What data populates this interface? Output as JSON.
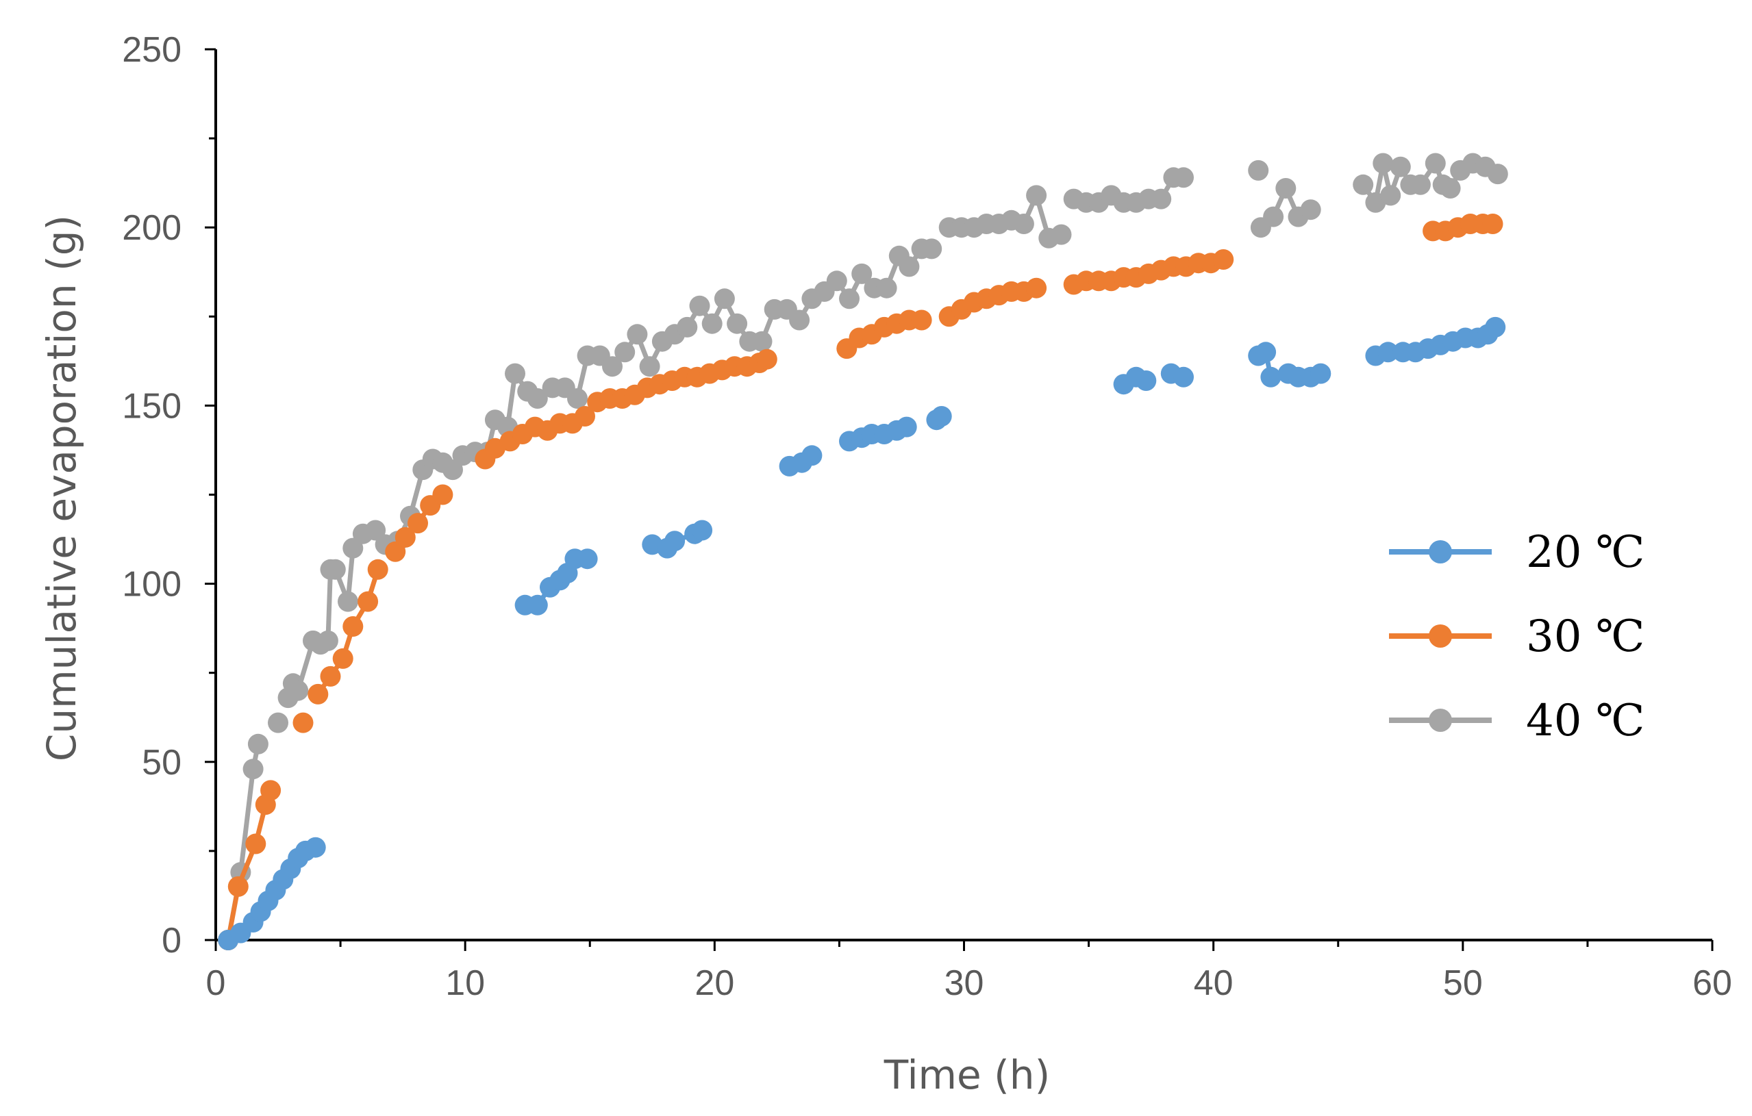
{
  "chart_data": {
    "type": "line",
    "title": "",
    "xlabel": "Time (h)",
    "ylabel": "Cumulative evaporation (g)",
    "xlim": [
      0,
      60
    ],
    "ylim": [
      0,
      250
    ],
    "xticks": [
      0,
      10,
      20,
      30,
      40,
      50,
      60
    ],
    "yticks": [
      0,
      50,
      100,
      150,
      200,
      250
    ],
    "grid": false,
    "legend_position": "right",
    "series": [
      {
        "name": "20 ℃",
        "color": "#5B9BD5",
        "segments": [
          [
            [
              0.5,
              0
            ],
            [
              1.0,
              2
            ],
            [
              1.5,
              5
            ],
            [
              1.8,
              8
            ],
            [
              2.1,
              11
            ],
            [
              2.4,
              14
            ],
            [
              2.7,
              17
            ],
            [
              3.0,
              20
            ],
            [
              3.3,
              23
            ],
            [
              3.6,
              25
            ],
            [
              4.0,
              26
            ]
          ],
          [
            [
              12.4,
              94
            ],
            [
              12.9,
              94
            ],
            [
              13.4,
              99
            ],
            [
              13.8,
              101
            ],
            [
              14.1,
              103
            ],
            [
              14.4,
              107
            ],
            [
              14.9,
              107
            ]
          ],
          [
            [
              17.5,
              111
            ],
            [
              18.1,
              110
            ],
            [
              18.4,
              112
            ],
            [
              19.2,
              114
            ],
            [
              19.5,
              115
            ]
          ],
          [
            [
              23.0,
              133
            ],
            [
              23.5,
              134
            ],
            [
              23.9,
              136
            ]
          ],
          [
            [
              25.4,
              140
            ],
            [
              25.9,
              141
            ],
            [
              26.3,
              142
            ],
            [
              26.8,
              142
            ],
            [
              27.3,
              143
            ],
            [
              27.7,
              144
            ]
          ],
          [
            [
              28.9,
              146
            ],
            [
              29.1,
              147
            ]
          ],
          [
            [
              36.4,
              156
            ],
            [
              36.9,
              158
            ],
            [
              37.3,
              157
            ]
          ],
          [
            [
              38.3,
              159
            ],
            [
              38.8,
              158
            ]
          ],
          [
            [
              41.8,
              164
            ],
            [
              42.1,
              165
            ],
            [
              42.3,
              158
            ]
          ],
          [
            [
              43.0,
              159
            ],
            [
              43.4,
              158
            ],
            [
              43.9,
              158
            ],
            [
              44.3,
              159
            ]
          ],
          [
            [
              46.5,
              164
            ],
            [
              47.0,
              165
            ],
            [
              47.6,
              165
            ],
            [
              48.1,
              165
            ],
            [
              48.6,
              166
            ],
            [
              49.1,
              167
            ],
            [
              49.6,
              168
            ],
            [
              50.1,
              169
            ],
            [
              50.6,
              169
            ],
            [
              51.0,
              170
            ],
            [
              51.3,
              172
            ]
          ]
        ]
      },
      {
        "name": "30 ℃",
        "color": "#ED7D31",
        "segments": [
          [
            [
              0.5,
              0
            ],
            [
              0.9,
              15
            ],
            [
              1.6,
              27
            ],
            [
              2.0,
              38
            ],
            [
              2.2,
              42
            ]
          ],
          [
            [
              3.5,
              61
            ]
          ],
          [
            [
              4.1,
              69
            ],
            [
              4.6,
              74
            ],
            [
              5.1,
              79
            ],
            [
              5.5,
              88
            ],
            [
              6.1,
              95
            ],
            [
              6.5,
              104
            ]
          ],
          [
            [
              7.2,
              109
            ],
            [
              7.6,
              113
            ],
            [
              8.1,
              117
            ],
            [
              8.6,
              122
            ],
            [
              9.1,
              125
            ]
          ],
          [
            [
              10.8,
              135
            ],
            [
              11.2,
              138
            ],
            [
              11.8,
              140
            ],
            [
              12.3,
              142
            ],
            [
              12.8,
              144
            ],
            [
              13.3,
              143
            ],
            [
              13.8,
              145
            ],
            [
              14.3,
              145
            ],
            [
              14.8,
              147
            ],
            [
              15.3,
              151
            ],
            [
              15.8,
              152
            ],
            [
              16.3,
              152
            ],
            [
              16.8,
              153
            ],
            [
              17.3,
              155
            ],
            [
              17.8,
              156
            ],
            [
              18.3,
              157
            ],
            [
              18.8,
              158
            ],
            [
              19.3,
              158
            ],
            [
              19.8,
              159
            ],
            [
              20.3,
              160
            ],
            [
              20.8,
              161
            ],
            [
              21.3,
              161
            ],
            [
              21.8,
              162
            ],
            [
              22.1,
              163
            ]
          ],
          [
            [
              25.3,
              166
            ],
            [
              25.8,
              169
            ],
            [
              26.3,
              170
            ],
            [
              26.8,
              172
            ],
            [
              27.3,
              173
            ],
            [
              27.8,
              174
            ],
            [
              28.3,
              174
            ]
          ],
          [
            [
              29.4,
              175
            ],
            [
              29.9,
              177
            ],
            [
              30.4,
              179
            ],
            [
              30.9,
              180
            ],
            [
              31.4,
              181
            ],
            [
              31.9,
              182
            ],
            [
              32.4,
              182
            ],
            [
              32.9,
              183
            ]
          ],
          [
            [
              34.4,
              184
            ],
            [
              34.9,
              185
            ],
            [
              35.4,
              185
            ],
            [
              35.9,
              185
            ],
            [
              36.4,
              186
            ],
            [
              36.9,
              186
            ],
            [
              37.4,
              187
            ],
            [
              37.9,
              188
            ],
            [
              38.4,
              189
            ],
            [
              38.9,
              189
            ],
            [
              39.4,
              190
            ],
            [
              39.9,
              190
            ],
            [
              40.4,
              191
            ]
          ],
          [
            [
              48.8,
              199
            ],
            [
              49.3,
              199
            ],
            [
              49.8,
              200
            ],
            [
              50.3,
              201
            ],
            [
              50.8,
              201
            ],
            [
              51.2,
              201
            ]
          ]
        ]
      },
      {
        "name": "40 ℃",
        "color": "#A5A5A5",
        "segments": [
          [
            [
              0.5,
              0
            ],
            [
              1.0,
              19
            ],
            [
              1.5,
              48
            ],
            [
              1.7,
              55
            ]
          ],
          [
            [
              2.5,
              61
            ]
          ],
          [
            [
              2.9,
              68
            ],
            [
              3.1,
              72
            ],
            [
              3.3,
              70
            ],
            [
              3.9,
              84
            ],
            [
              4.2,
              83
            ],
            [
              4.5,
              84
            ],
            [
              4.6,
              104
            ],
            [
              4.8,
              104
            ],
            [
              5.3,
              95
            ],
            [
              5.5,
              110
            ],
            [
              5.9,
              114
            ],
            [
              6.4,
              115
            ],
            [
              6.8,
              111
            ],
            [
              7.3,
              112
            ],
            [
              7.8,
              119
            ],
            [
              8.3,
              132
            ],
            [
              8.7,
              135
            ],
            [
              9.1,
              134
            ],
            [
              9.5,
              132
            ],
            [
              9.9,
              136
            ],
            [
              10.4,
              137
            ],
            [
              10.9,
              137
            ],
            [
              11.2,
              146
            ],
            [
              11.7,
              144
            ],
            [
              12.0,
              159
            ],
            [
              12.5,
              154
            ],
            [
              12.9,
              152
            ],
            [
              13.5,
              155
            ],
            [
              14.0,
              155
            ],
            [
              14.5,
              152
            ],
            [
              14.9,
              164
            ],
            [
              15.4,
              164
            ],
            [
              15.9,
              161
            ],
            [
              16.4,
              165
            ],
            [
              16.9,
              170
            ],
            [
              17.4,
              161
            ],
            [
              17.9,
              168
            ],
            [
              18.4,
              170
            ],
            [
              18.9,
              172
            ],
            [
              19.4,
              178
            ],
            [
              19.9,
              173
            ],
            [
              20.4,
              180
            ],
            [
              20.9,
              173
            ],
            [
              21.4,
              168
            ],
            [
              21.9,
              168
            ],
            [
              22.4,
              177
            ],
            [
              22.9,
              177
            ],
            [
              23.4,
              174
            ],
            [
              23.9,
              180
            ],
            [
              24.4,
              182
            ],
            [
              24.9,
              185
            ],
            [
              25.4,
              180
            ],
            [
              25.9,
              187
            ],
            [
              26.4,
              183
            ],
            [
              26.9,
              183
            ],
            [
              27.4,
              192
            ],
            [
              27.8,
              189
            ],
            [
              28.3,
              194
            ],
            [
              28.7,
              194
            ]
          ],
          [
            [
              29.4,
              200
            ],
            [
              29.9,
              200
            ],
            [
              30.4,
              200
            ],
            [
              30.9,
              201
            ],
            [
              31.4,
              201
            ],
            [
              31.9,
              202
            ],
            [
              32.4,
              201
            ],
            [
              32.9,
              209
            ],
            [
              33.4,
              197
            ],
            [
              33.9,
              198
            ]
          ],
          [
            [
              34.4,
              208
            ],
            [
              34.9,
              207
            ],
            [
              35.4,
              207
            ],
            [
              35.9,
              209
            ],
            [
              36.4,
              207
            ],
            [
              36.9,
              207
            ],
            [
              37.4,
              208
            ],
            [
              37.9,
              208
            ],
            [
              38.4,
              214
            ],
            [
              38.8,
              214
            ]
          ],
          [
            [
              41.8,
              216
            ]
          ],
          [
            [
              41.9,
              200
            ],
            [
              42.4,
              203
            ],
            [
              42.9,
              211
            ],
            [
              43.4,
              203
            ],
            [
              43.9,
              205
            ]
          ],
          [
            [
              46.0,
              212
            ],
            [
              46.5,
              207
            ],
            [
              46.8,
              218
            ],
            [
              47.1,
              209
            ],
            [
              47.5,
              217
            ],
            [
              47.9,
              212
            ],
            [
              48.3,
              212
            ],
            [
              48.9,
              218
            ],
            [
              49.2,
              212
            ],
            [
              49.5,
              211
            ],
            [
              49.9,
              216
            ],
            [
              50.4,
              218
            ],
            [
              50.9,
              217
            ],
            [
              51.4,
              215
            ]
          ]
        ]
      }
    ]
  }
}
